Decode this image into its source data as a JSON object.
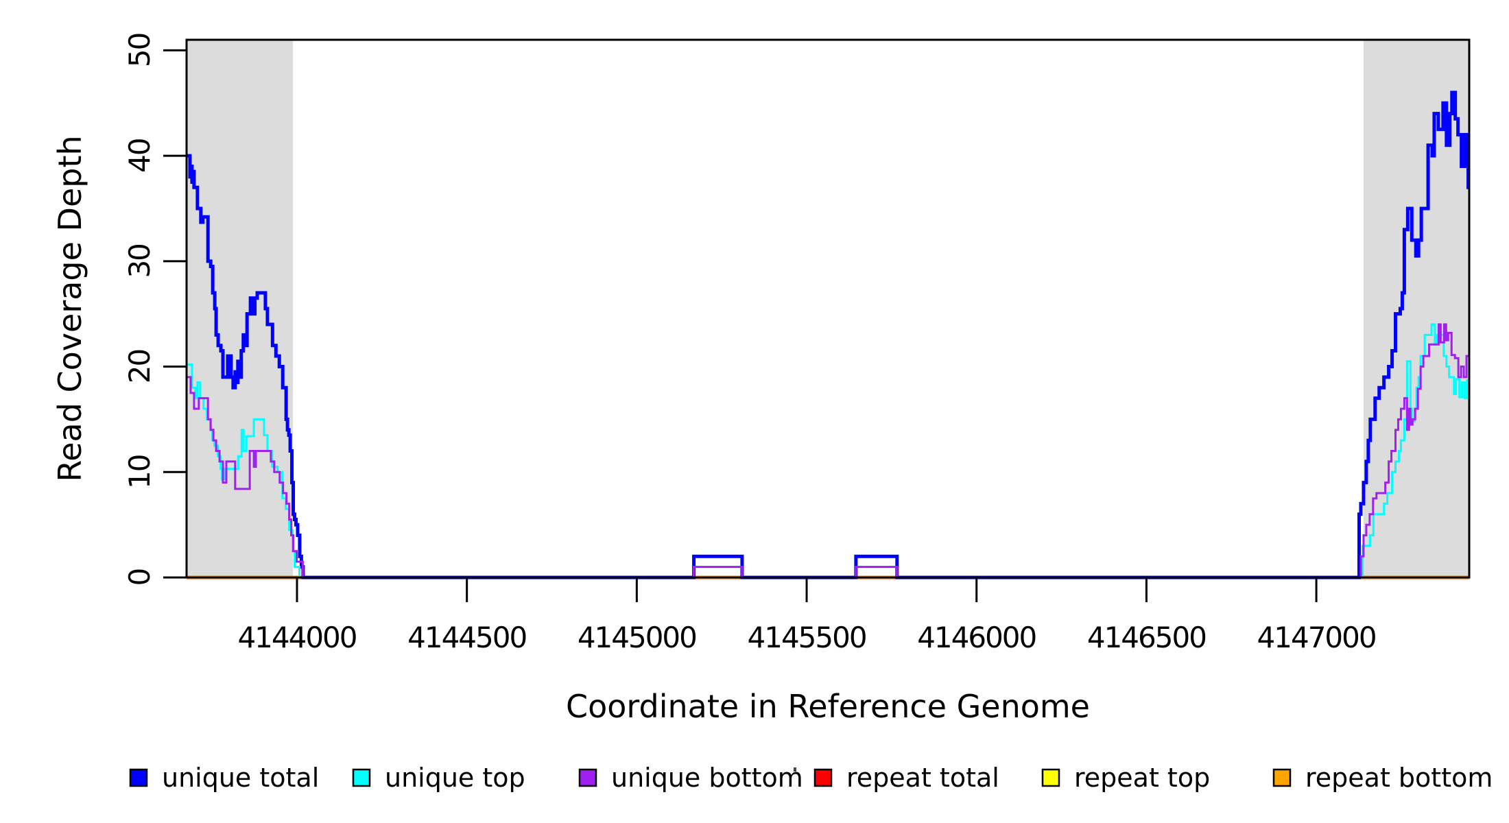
{
  "figure": {
    "background": "#FFFFFF",
    "axis_color": "#000000",
    "band_color": "#DCDCDC"
  },
  "chart_data": {
    "type": "line",
    "subtype": "step-coverage",
    "title": "",
    "xlabel": "Coordinate in Reference Genome",
    "ylabel": "Read Coverage Depth",
    "x_domain": [
      4143675,
      4147450
    ],
    "y_domain": [
      0,
      51
    ],
    "x_ticks": [
      4144000,
      4144500,
      4145000,
      4145500,
      4146000,
      4146500,
      4147000
    ],
    "y_ticks": [
      0,
      10,
      20,
      30,
      40,
      50
    ],
    "grid": false,
    "legend_position": "bottom",
    "highlight_bands": {
      "color": "#DCDCDC",
      "regions": [
        [
          4143675,
          4143988
        ],
        [
          4147139,
          4147450
        ]
      ]
    },
    "series": [
      {
        "name": "repeat total",
        "color": "#FF0000",
        "width": 5,
        "points": [
          [
            4143675,
            0
          ]
        ]
      },
      {
        "name": "repeat top",
        "color": "#FFFF00",
        "width": 3,
        "points": [
          [
            4143675,
            0
          ]
        ]
      },
      {
        "name": "repeat bottom",
        "color": "#FFA500",
        "width": 4.5,
        "points": [
          [
            4143675,
            0
          ]
        ]
      },
      {
        "name": "unique total",
        "color": "#0000FF",
        "width": 5,
        "points": [
          [
            4143675,
            40
          ],
          [
            4143685,
            38
          ],
          [
            4143688,
            39
          ],
          [
            4143691,
            37.5
          ],
          [
            4143694,
            38.5
          ],
          [
            4143697,
            37
          ],
          [
            4143707,
            35
          ],
          [
            4143717,
            33.7
          ],
          [
            4143723,
            34.2
          ],
          [
            4143738,
            30
          ],
          [
            4143746,
            29.5
          ],
          [
            4143752,
            27
          ],
          [
            4143758,
            25.5
          ],
          [
            4143762,
            23
          ],
          [
            4143768,
            22
          ],
          [
            4143776,
            21.5
          ],
          [
            4143782,
            19
          ],
          [
            4143796,
            21
          ],
          [
            4143806,
            19
          ],
          [
            4143812,
            18
          ],
          [
            4143818,
            19.5
          ],
          [
            4143822,
            18.5
          ],
          [
            4143826,
            20.5
          ],
          [
            4143830,
            19
          ],
          [
            4143836,
            21.5
          ],
          [
            4143842,
            23
          ],
          [
            4143847,
            22
          ],
          [
            4143853,
            25
          ],
          [
            4143863,
            26.5
          ],
          [
            4143870,
            25
          ],
          [
            4143876,
            26.5
          ],
          [
            4143883,
            27
          ],
          [
            4143907,
            25.5
          ],
          [
            4143913,
            24
          ],
          [
            4143928,
            22
          ],
          [
            4143938,
            21
          ],
          [
            4143948,
            20
          ],
          [
            4143958,
            18
          ],
          [
            4143968,
            15
          ],
          [
            4143972,
            14
          ],
          [
            4143976,
            13.5
          ],
          [
            4143980,
            12
          ],
          [
            4143985,
            9
          ],
          [
            4143989,
            6
          ],
          [
            4143993,
            5.5
          ],
          [
            4143997,
            5
          ],
          [
            4144002,
            4
          ],
          [
            4144008,
            2
          ],
          [
            4144013,
            1
          ],
          [
            4144018,
            0
          ],
          [
            4145168,
            2
          ],
          [
            4145310,
            0
          ],
          [
            4145645,
            2
          ],
          [
            4145766,
            0
          ],
          [
            4147126,
            6
          ],
          [
            4147131,
            7
          ],
          [
            4147139,
            9
          ],
          [
            4147147,
            11
          ],
          [
            4147153,
            13
          ],
          [
            4147159,
            15
          ],
          [
            4147173,
            17
          ],
          [
            4147185,
            18
          ],
          [
            4147199,
            19
          ],
          [
            4147213,
            20
          ],
          [
            4147223,
            21.5
          ],
          [
            4147233,
            25
          ],
          [
            4147247,
            25.5
          ],
          [
            4147253,
            27
          ],
          [
            4147259,
            33
          ],
          [
            4147269,
            35
          ],
          [
            4147281,
            32
          ],
          [
            4147293,
            30.5
          ],
          [
            4147301,
            32
          ],
          [
            4147309,
            35
          ],
          [
            4147329,
            41
          ],
          [
            4147341,
            40
          ],
          [
            4147347,
            44
          ],
          [
            4147359,
            42.5
          ],
          [
            4147373,
            45
          ],
          [
            4147383,
            41
          ],
          [
            4147393,
            44
          ],
          [
            4147399,
            46
          ],
          [
            4147409,
            43.5
          ],
          [
            4147417,
            42
          ],
          [
            4147427,
            39
          ],
          [
            4147437,
            42
          ],
          [
            4147447,
            37
          ]
        ]
      },
      {
        "name": "unique top",
        "color": "#00FFFF",
        "width": 3,
        "points": [
          [
            4143675,
            20.2
          ],
          [
            4143691,
            18
          ],
          [
            4143701,
            17
          ],
          [
            4143707,
            18.5
          ],
          [
            4143715,
            17
          ],
          [
            4143725,
            16
          ],
          [
            4143735,
            15
          ],
          [
            4143745,
            14
          ],
          [
            4143751,
            13
          ],
          [
            4143757,
            12.5
          ],
          [
            4143767,
            11.5
          ],
          [
            4143775,
            10.3
          ],
          [
            4143779,
            9.3
          ],
          [
            4143787,
            10.3
          ],
          [
            4143827,
            11.5
          ],
          [
            4143837,
            14
          ],
          [
            4143843,
            12
          ],
          [
            4143851,
            13.4
          ],
          [
            4143873,
            15
          ],
          [
            4143903,
            13.5
          ],
          [
            4143913,
            12
          ],
          [
            4143927,
            10.5
          ],
          [
            4143943,
            10
          ],
          [
            4143957,
            7.5
          ],
          [
            4143967,
            6.5
          ],
          [
            4143977,
            4.5
          ],
          [
            4143987,
            2.5
          ],
          [
            4143993,
            1
          ],
          [
            4144007,
            0
          ],
          [
            4145168,
            1
          ],
          [
            4145310,
            0
          ],
          [
            4145645,
            1
          ],
          [
            4145766,
            0
          ],
          [
            4147136,
            3
          ],
          [
            4147158,
            4
          ],
          [
            4147168,
            6
          ],
          [
            4147199,
            7
          ],
          [
            4147209,
            8
          ],
          [
            4147223,
            10
          ],
          [
            4147233,
            11
          ],
          [
            4147243,
            12
          ],
          [
            4147249,
            13
          ],
          [
            4147259,
            15
          ],
          [
            4147267,
            20.5
          ],
          [
            4147277,
            16
          ],
          [
            4147281,
            14.8
          ],
          [
            4147289,
            16
          ],
          [
            4147295,
            18
          ],
          [
            4147301,
            19
          ],
          [
            4147307,
            21
          ],
          [
            4147319,
            23
          ],
          [
            4147339,
            24
          ],
          [
            4147349,
            22.3
          ],
          [
            4147355,
            23
          ],
          [
            4147375,
            21
          ],
          [
            4147383,
            20
          ],
          [
            4147391,
            19
          ],
          [
            4147405,
            17.4
          ],
          [
            4147411,
            18.8
          ],
          [
            4147421,
            17.1
          ],
          [
            4147429,
            18.5
          ],
          [
            4147437,
            17
          ],
          [
            4147443,
            18.7
          ]
        ]
      },
      {
        "name": "unique bottom",
        "color": "#A020F0",
        "width": 3,
        "points": [
          [
            4143675,
            19
          ],
          [
            4143687,
            17.5
          ],
          [
            4143697,
            16
          ],
          [
            4143711,
            17
          ],
          [
            4143738,
            15
          ],
          [
            4143746,
            14
          ],
          [
            4143754,
            13
          ],
          [
            4143762,
            12
          ],
          [
            4143772,
            11
          ],
          [
            4143782,
            9
          ],
          [
            4143792,
            11
          ],
          [
            4143818,
            8.4
          ],
          [
            4143861,
            12
          ],
          [
            4143873,
            10.5
          ],
          [
            4143879,
            12
          ],
          [
            4143923,
            11
          ],
          [
            4143933,
            10
          ],
          [
            4143949,
            9
          ],
          [
            4143959,
            8
          ],
          [
            4143969,
            7
          ],
          [
            4143977,
            5.5
          ],
          [
            4143983,
            4
          ],
          [
            4143989,
            2.5
          ],
          [
            4143999,
            1.5
          ],
          [
            4144017,
            0
          ],
          [
            4145168,
            1
          ],
          [
            4145310,
            0
          ],
          [
            4145645,
            1
          ],
          [
            4145766,
            0
          ],
          [
            4147131,
            2
          ],
          [
            4147139,
            4
          ],
          [
            4147147,
            5
          ],
          [
            4147157,
            6
          ],
          [
            4147167,
            7.5
          ],
          [
            4147177,
            8
          ],
          [
            4147203,
            9
          ],
          [
            4147213,
            11
          ],
          [
            4147221,
            12
          ],
          [
            4147233,
            14
          ],
          [
            4147241,
            15
          ],
          [
            4147249,
            16
          ],
          [
            4147259,
            17
          ],
          [
            4147267,
            14
          ],
          [
            4147273,
            16
          ],
          [
            4147277,
            14.5
          ],
          [
            4147283,
            15
          ],
          [
            4147291,
            16
          ],
          [
            4147299,
            17.9
          ],
          [
            4147307,
            20
          ],
          [
            4147315,
            21
          ],
          [
            4147332,
            22.1
          ],
          [
            4147360,
            24
          ],
          [
            4147366,
            22.3
          ],
          [
            4147376,
            24
          ],
          [
            4147382,
            22.5
          ],
          [
            4147388,
            23.2
          ],
          [
            4147398,
            21.1
          ],
          [
            4147408,
            20.8
          ],
          [
            4147418,
            19
          ],
          [
            4147426,
            20
          ],
          [
            4147434,
            19
          ],
          [
            4147442,
            21
          ]
        ]
      }
    ]
  },
  "legend": {
    "items": [
      {
        "label": "unique total",
        "color": "#0000FF"
      },
      {
        "label": "unique top",
        "color": "#00FFFF"
      },
      {
        "label": "unique bottom",
        "color": "#A020F0"
      },
      {
        "label": "repeat total",
        "color": "#FF0000"
      },
      {
        "label": "repeat top",
        "color": "#FFFF00"
      },
      {
        "label": "repeat bottom",
        "color": "#FFA500"
      }
    ]
  }
}
